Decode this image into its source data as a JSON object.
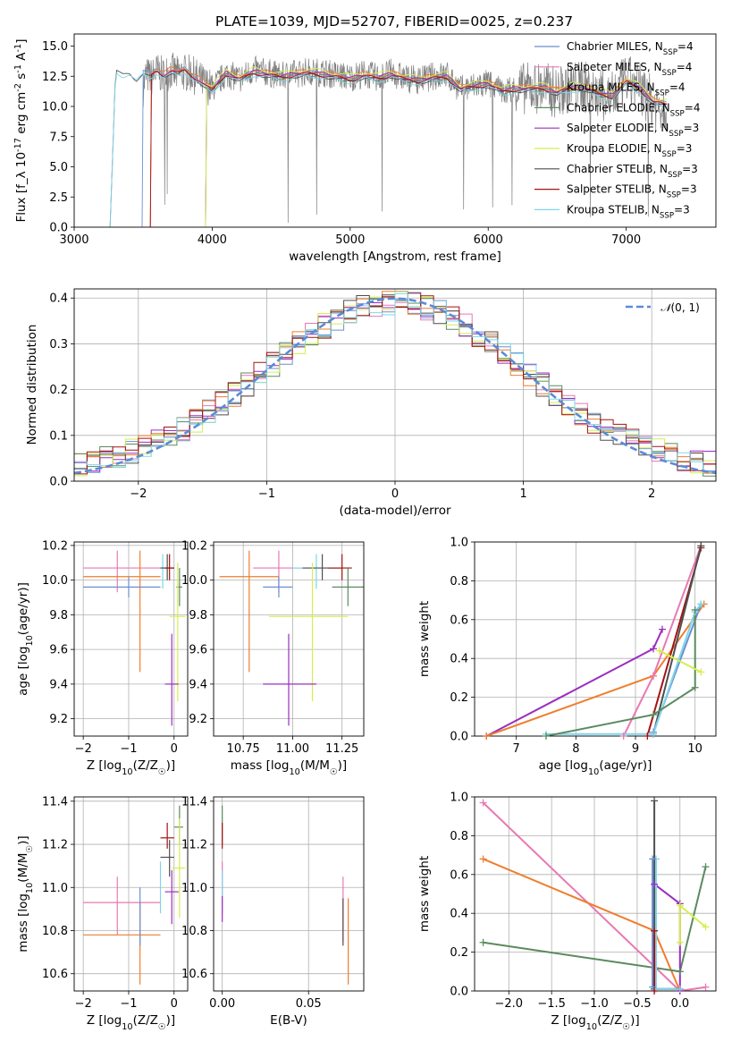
{
  "figure": {
    "title": "PLATE=1039, MJD=52707, FIBERID=0025, z=0.237"
  },
  "colors": {
    "data_grey": "#808080",
    "chabrier_miles": "#6a8fd0",
    "salpeter_miles": "#e879b4",
    "kroupa_miles": "#ef7e2e",
    "chabrier_elodie": "#5b8a60",
    "salpeter_elodie": "#9b2fbf",
    "kroupa_elodie": "#d6ee4d",
    "chabrier_stelib": "#4f4f4f",
    "salpeter_stelib": "#a31313",
    "kroupa_stelib": "#80d5ea",
    "normal_curve": "#5b8bd6"
  },
  "chart_data": [
    {
      "id": "spectrum",
      "type": "line",
      "title": "PLATE=1039, MJD=52707, FIBERID=0025, z=0.237",
      "xlabel": "wavelength [Angstrom, rest frame]",
      "ylabel": "Flux [f_λ 10^-17 erg cm^-2 s^-1 A^-1]",
      "xlim": [
        3000,
        7650
      ],
      "ylim": [
        0,
        16
      ],
      "xticks": [
        "3000",
        "4000",
        "5000",
        "6000",
        "7000"
      ],
      "yticks": [
        "0.0",
        "2.5",
        "5.0",
        "7.5",
        "10.0",
        "12.5",
        "15.0"
      ],
      "grid": false,
      "legend_position": "upper-right",
      "observed": {
        "x": [
          3500,
          3520,
          3560,
          3600,
          3650,
          3700,
          3750,
          3800,
          3850,
          3900,
          3950,
          4000,
          4100,
          4200,
          4300,
          4400,
          4500,
          4600,
          4700,
          4800,
          4900,
          5000,
          5100,
          5200,
          5300,
          5400,
          5500,
          5600,
          5700,
          5800,
          5900,
          6000,
          6100,
          6200,
          6300,
          6400,
          6500,
          6600,
          6700,
          6800,
          6900,
          7000,
          7100,
          7200,
          7300
        ],
        "y": [
          11.5,
          12.6,
          12.4,
          12.9,
          12.5,
          13.0,
          12.6,
          12.8,
          12.7,
          12.3,
          11.8,
          11.5,
          12.7,
          12.3,
          13.0,
          12.8,
          12.5,
          12.7,
          12.9,
          12.8,
          12.6,
          12.4,
          12.7,
          12.4,
          12.8,
          12.3,
          12.2,
          12.5,
          12.6,
          11.4,
          11.7,
          11.9,
          11.2,
          11.5,
          11.5,
          11.6,
          11.1,
          11.7,
          11.6,
          11.0,
          10.7,
          12.2,
          11.5,
          10.2,
          10.0
        ]
      },
      "model": {
        "x": [
          3200,
          3260,
          3300,
          3350,
          3400,
          3450,
          3500,
          3550,
          3600,
          3650,
          3700,
          3750,
          3800,
          3850,
          3900,
          3950,
          4000,
          4100,
          4200,
          4300,
          4400,
          4500,
          4600,
          4700,
          4800,
          4900,
          5000,
          5100,
          5200,
          5300,
          5400,
          5500,
          5600,
          5700,
          5800,
          5900,
          6000,
          6100,
          6200,
          6300,
          6400,
          6500,
          6600,
          6700,
          6800,
          6900,
          7000,
          7100,
          7200,
          7300
        ],
        "y": [
          0.0,
          0.0,
          13.0,
          12.7,
          12.9,
          12.3,
          12.8,
          12.5,
          13.0,
          12.6,
          12.9,
          12.7,
          13.0,
          12.6,
          12.2,
          11.7,
          11.3,
          12.7,
          12.2,
          12.8,
          12.6,
          12.4,
          12.6,
          12.7,
          12.6,
          12.4,
          12.2,
          12.5,
          12.3,
          12.6,
          12.2,
          12.1,
          12.3,
          12.4,
          11.4,
          11.6,
          11.8,
          11.2,
          11.4,
          11.4,
          11.5,
          11.1,
          11.5,
          11.5,
          11.0,
          10.8,
          12.0,
          11.4,
          10.3,
          10.1
        ]
      },
      "series": [
        {
          "name": "Chabrier MILES, N_SSP=4",
          "color_key": "chabrier_miles",
          "start": 3500,
          "offset": 0.15
        },
        {
          "name": "Salpeter MILES, N_SSP=4",
          "color_key": "salpeter_miles",
          "start": 3560,
          "offset": 0.05
        },
        {
          "name": "Kroupa MILES, N_SSP=4",
          "color_key": "kroupa_miles",
          "start": 3560,
          "offset": 0.25
        },
        {
          "name": "Chabrier ELODIE, N_SSP=4",
          "color_key": "chabrier_elodie",
          "start": 3960,
          "offset": -0.05
        },
        {
          "name": "Salpeter ELODIE, N_SSP=3",
          "color_key": "salpeter_elodie",
          "start": 3960,
          "offset": 0.1
        },
        {
          "name": "Kroupa ELODIE, N_SSP=3",
          "color_key": "kroupa_elodie",
          "start": 3960,
          "offset": 0.35
        },
        {
          "name": "Chabrier STELIB, N_SSP=3",
          "color_key": "chabrier_stelib",
          "start": 3260,
          "offset": -0.1
        },
        {
          "name": "Salpeter STELIB, N_SSP=3",
          "color_key": "salpeter_stelib",
          "start": 3560,
          "offset": 0.0
        },
        {
          "name": "Kroupa STELIB, N_SSP=3",
          "color_key": "kroupa_stelib",
          "start": 3260,
          "offset": -0.2
        }
      ]
    },
    {
      "id": "residuals",
      "type": "line",
      "xlabel": "(data-model)/error",
      "ylabel": "Normed distribution",
      "xlim": [
        -2.5,
        2.5
      ],
      "ylim": [
        0,
        0.42
      ],
      "xticks": [
        "-2",
        "-1",
        "0",
        "1",
        "2"
      ],
      "yticks": [
        "0.0",
        "0.1",
        "0.2",
        "0.3",
        "0.4"
      ],
      "grid": true,
      "legend_position": "upper-right",
      "legend": "N(0,1)",
      "curve": {
        "name": "N(0,1)",
        "mean": 0,
        "sigma": 1
      },
      "bin_width": 0.1
    },
    {
      "id": "age_vs_Z",
      "type": "scatter",
      "xlabel": "Z [log10(Z/Z☉)]",
      "ylabel": "age [log10(age/yr)]",
      "xlim": [
        -2.2,
        0.3
      ],
      "ylim": [
        9.1,
        10.22
      ],
      "xticks": [
        "-2",
        "-1",
        "0"
      ],
      "yticks": [
        "9.2",
        "9.4",
        "9.6",
        "9.8",
        "10.0",
        "10.2"
      ],
      "grid": true,
      "points": [
        {
          "color_key": "salpeter_miles",
          "x": -1.25,
          "y": 10.07,
          "xlo": -2.0,
          "xhi": -0.3,
          "ylo": 9.93,
          "yhi": 10.17
        },
        {
          "color_key": "kroupa_miles",
          "x": -0.75,
          "y": 10.02,
          "xlo": -2.0,
          "xhi": -0.3,
          "ylo": 9.47,
          "yhi": 10.17
        },
        {
          "color_key": "chabrier_miles",
          "x": -1.0,
          "y": 9.96,
          "xlo": -2.0,
          "xhi": -0.3,
          "ylo": 9.9,
          "yhi": 10.02
        },
        {
          "color_key": "kroupa_stelib",
          "x": -0.25,
          "y": 10.07,
          "xlo": -0.3,
          "xhi": 0.0,
          "ylo": 9.95,
          "yhi": 10.15
        },
        {
          "color_key": "chabrier_stelib",
          "x": -0.15,
          "y": 10.07,
          "xlo": -0.3,
          "xhi": 0.0,
          "ylo": 10.0,
          "yhi": 10.15
        },
        {
          "color_key": "salpeter_stelib",
          "x": -0.1,
          "y": 10.07,
          "xlo": -0.2,
          "xhi": 0.0,
          "ylo": 10.0,
          "yhi": 10.15
        },
        {
          "color_key": "chabrier_elodie",
          "x": 0.12,
          "y": 9.96,
          "xlo": 0.05,
          "xhi": 0.18,
          "ylo": 9.85,
          "yhi": 10.07
        },
        {
          "color_key": "kroupa_elodie",
          "x": 0.08,
          "y": 9.79,
          "xlo": -0.1,
          "xhi": 0.25,
          "ylo": 9.3,
          "yhi": 10.1
        },
        {
          "color_key": "salpeter_elodie",
          "x": -0.05,
          "y": 9.4,
          "xlo": -0.2,
          "xhi": 0.1,
          "ylo": 9.16,
          "yhi": 9.69
        }
      ]
    },
    {
      "id": "age_vs_mass",
      "type": "scatter",
      "xlabel": "mass [log10(M/M☉)]",
      "xlim": [
        10.6,
        11.36
      ],
      "ylim": [
        9.1,
        10.22
      ],
      "xticks": [
        "10.75",
        "11.00",
        "11.25"
      ],
      "yticks": [
        "9.2",
        "9.4",
        "9.6",
        "9.8",
        "10.0",
        "10.2"
      ],
      "grid": true,
      "points": [
        {
          "color_key": "salpeter_miles",
          "x": 10.93,
          "y": 10.07,
          "xlo": 10.8,
          "xhi": 11.05,
          "ylo": 9.93,
          "yhi": 10.17
        },
        {
          "color_key": "kroupa_miles",
          "x": 10.78,
          "y": 10.02,
          "xlo": 10.63,
          "xhi": 10.93,
          "ylo": 9.47,
          "yhi": 10.17
        },
        {
          "color_key": "chabrier_miles",
          "x": 10.93,
          "y": 9.96,
          "xlo": 10.85,
          "xhi": 11.0,
          "ylo": 9.9,
          "yhi": 10.02
        },
        {
          "color_key": "kroupa_stelib",
          "x": 11.12,
          "y": 10.07,
          "xlo": 11.0,
          "xhi": 11.25,
          "ylo": 9.95,
          "yhi": 10.15
        },
        {
          "color_key": "chabrier_stelib",
          "x": 11.15,
          "y": 10.07,
          "xlo": 11.05,
          "xhi": 11.25,
          "ylo": 10.0,
          "yhi": 10.15
        },
        {
          "color_key": "salpeter_stelib",
          "x": 11.25,
          "y": 10.07,
          "xlo": 11.18,
          "xhi": 11.3,
          "ylo": 10.0,
          "yhi": 10.15
        },
        {
          "color_key": "chabrier_elodie",
          "x": 11.28,
          "y": 9.96,
          "xlo": 11.2,
          "xhi": 11.36,
          "ylo": 9.85,
          "yhi": 10.07
        },
        {
          "color_key": "kroupa_elodie",
          "x": 11.1,
          "y": 9.79,
          "xlo": 10.88,
          "xhi": 11.28,
          "ylo": 9.3,
          "yhi": 10.1
        },
        {
          "color_key": "salpeter_elodie",
          "x": 10.98,
          "y": 9.4,
          "xlo": 10.85,
          "xhi": 11.12,
          "ylo": 9.16,
          "yhi": 9.69
        }
      ]
    },
    {
      "id": "weight_vs_age",
      "type": "line",
      "xlabel": "age [log10(age/yr)]",
      "ylabel": "mass weight",
      "xlim": [
        6.3,
        10.35
      ],
      "ylim": [
        0,
        1
      ],
      "xticks": [
        "7",
        "8",
        "9",
        "10"
      ],
      "yticks": [
        "0.0",
        "0.2",
        "0.4",
        "0.6",
        "0.8",
        "1.0"
      ],
      "grid": true,
      "series": [
        {
          "color_key": "salpeter_elodie",
          "x": [
            6.5,
            9.3,
            9.45
          ],
          "y": [
            0.0,
            0.45,
            0.55
          ]
        },
        {
          "color_key": "kroupa_miles",
          "x": [
            6.5,
            9.3,
            10.15
          ],
          "y": [
            0.0,
            0.31,
            0.68
          ]
        },
        {
          "color_key": "salpeter_miles",
          "x": [
            8.8,
            9.3,
            10.1
          ],
          "y": [
            0.0,
            0.31,
            0.98
          ]
        },
        {
          "color_key": "salpeter_stelib",
          "x": [
            9.2,
            10.1
          ],
          "y": [
            0.0,
            0.97
          ]
        },
        {
          "color_key": "chabrier_stelib",
          "x": [
            9.3,
            10.1
          ],
          "y": [
            0.01,
            0.98
          ]
        },
        {
          "color_key": "chabrier_miles",
          "x": [
            9.3,
            10.1
          ],
          "y": [
            0.02,
            0.68
          ]
        },
        {
          "color_key": "kroupa_stelib",
          "x": [
            7.5,
            9.3,
            10.0,
            10.1
          ],
          "y": [
            0.01,
            0.01,
            0.64,
            0.68
          ]
        },
        {
          "color_key": "chabrier_elodie",
          "x": [
            7.5,
            9.3,
            10.0,
            10.0
          ],
          "y": [
            0.0,
            0.11,
            0.25,
            0.65
          ]
        },
        {
          "color_key": "kroupa_elodie",
          "x": [
            9.4,
            10.1
          ],
          "y": [
            0.44,
            0.33
          ]
        }
      ]
    },
    {
      "id": "mass_vs_Z",
      "type": "scatter",
      "xlabel": "Z [log10(Z/Z☉)]",
      "ylabel": "mass [log10(M/M☉)]",
      "xlim": [
        -2.2,
        0.3
      ],
      "ylim": [
        10.52,
        11.42
      ],
      "xticks": [
        "-2",
        "-1",
        "0"
      ],
      "yticks": [
        "10.6",
        "10.8",
        "11.0",
        "11.2",
        "11.4"
      ],
      "grid": true,
      "points": [
        {
          "color_key": "salpeter_miles",
          "x": -1.25,
          "y": 10.93,
          "xlo": -2.0,
          "xhi": -0.3,
          "ylo": 10.78,
          "yhi": 11.05
        },
        {
          "color_key": "kroupa_miles",
          "x": -0.75,
          "y": 10.78,
          "xlo": -2.0,
          "xhi": -0.3,
          "ylo": 10.55,
          "yhi": 10.93
        },
        {
          "color_key": "chabrier_miles",
          "x": -0.75,
          "y": 10.93,
          "xlo": -0.75,
          "xhi": -0.75,
          "ylo": 10.73,
          "yhi": 11.0
        },
        {
          "color_key": "salpeter_stelib",
          "x": -0.15,
          "y": 11.23,
          "xlo": -0.3,
          "xhi": 0.0,
          "ylo": 11.18,
          "yhi": 11.3
        },
        {
          "color_key": "chabrier_stelib",
          "x": -0.1,
          "y": 11.14,
          "xlo": -0.3,
          "xhi": 0.0,
          "ylo": 11.05,
          "yhi": 11.22
        },
        {
          "color_key": "kroupa_stelib",
          "x": -0.3,
          "y": 11.0,
          "xlo": -0.3,
          "xhi": -0.3,
          "ylo": 10.88,
          "yhi": 11.12
        },
        {
          "color_key": "chabrier_elodie",
          "x": 0.12,
          "y": 11.28,
          "xlo": 0.0,
          "xhi": 0.2,
          "ylo": 11.2,
          "yhi": 11.38
        },
        {
          "color_key": "kroupa_elodie",
          "x": 0.12,
          "y": 11.09,
          "xlo": -0.05,
          "xhi": 0.25,
          "ylo": 10.86,
          "yhi": 11.32
        },
        {
          "color_key": "salpeter_elodie",
          "x": -0.05,
          "y": 10.98,
          "xlo": -0.2,
          "xhi": 0.1,
          "ylo": 10.83,
          "yhi": 11.08
        }
      ]
    },
    {
      "id": "mass_vs_ebv",
      "type": "scatter",
      "xlabel": "E(B-V)",
      "xlim": [
        -0.005,
        0.082
      ],
      "ylim": [
        10.52,
        11.42
      ],
      "xticks": [
        "0.00",
        "0.05"
      ],
      "yticks": [
        "10.6",
        "10.8",
        "11.0",
        "11.2",
        "11.4"
      ],
      "grid": true,
      "points": [
        {
          "color_key": "chabrier_elodie",
          "x": 0.0,
          "y": 11.28,
          "ylo": 11.2,
          "yhi": 11.38
        },
        {
          "color_key": "salpeter_stelib",
          "x": 0.0,
          "y": 11.23,
          "ylo": 11.18,
          "yhi": 11.3
        },
        {
          "color_key": "salpeter_miles",
          "x": 0.0,
          "y": 11.0,
          "ylo": 10.88,
          "yhi": 11.12
        },
        {
          "color_key": "kroupa_stelib",
          "x": 0.0,
          "y": 11.0,
          "ylo": 10.9,
          "yhi": 11.08
        },
        {
          "color_key": "salpeter_elodie",
          "x": 0.0,
          "y": 10.9,
          "ylo": 10.84,
          "yhi": 10.96
        },
        {
          "color_key": "salpeter_miles",
          "x": 0.07,
          "y": 10.9,
          "ylo": 10.75,
          "yhi": 11.05
        },
        {
          "color_key": "chabrier_stelib",
          "x": 0.07,
          "y": 10.85,
          "ylo": 10.73,
          "yhi": 10.95
        },
        {
          "color_key": "kroupa_miles",
          "x": 0.073,
          "y": 10.75,
          "ylo": 10.55,
          "yhi": 10.95
        }
      ]
    },
    {
      "id": "weight_vs_Z",
      "type": "line",
      "xlabel": "Z [log10(Z/Z☉)]",
      "ylabel": "mass weight",
      "xlim": [
        -2.4,
        0.42
      ],
      "ylim": [
        0,
        1
      ],
      "xticks": [
        "-2.0",
        "-1.5",
        "-1.0",
        "-0.5",
        "0.0"
      ],
      "yticks": [
        "0.0",
        "0.2",
        "0.4",
        "0.6",
        "0.8",
        "1.0"
      ],
      "grid": true,
      "series": [
        {
          "color_key": "salpeter_miles",
          "x": [
            -2.3,
            0.0,
            0.3
          ],
          "y": [
            0.97,
            0.0,
            0.02
          ]
        },
        {
          "color_key": "kroupa_miles",
          "x": [
            -2.3,
            -0.3,
            0.0
          ],
          "y": [
            0.68,
            0.31,
            0.0
          ]
        },
        {
          "color_key": "chabrier_elodie",
          "x": [
            -2.3,
            0.0,
            0.3
          ],
          "y": [
            0.25,
            0.1,
            0.64
          ]
        },
        {
          "color_key": "salpeter_elodie",
          "x": [
            -0.3,
            0.0,
            0.0
          ],
          "y": [
            0.55,
            0.45,
            0.0
          ]
        },
        {
          "color_key": "kroupa_elodie",
          "x": [
            0.0,
            0.0,
            0.3
          ],
          "y": [
            0.25,
            0.44,
            0.33
          ]
        },
        {
          "color_key": "chabrier_stelib",
          "x": [
            -0.3,
            -0.3,
            0.0
          ],
          "y": [
            0.98,
            0.01,
            0.01
          ]
        },
        {
          "color_key": "kroupa_stelib",
          "x": [
            -0.28,
            -0.28,
            0.0
          ],
          "y": [
            0.68,
            0.01,
            0.01
          ]
        },
        {
          "color_key": "chabrier_miles",
          "x": [
            -0.32,
            -0.32
          ],
          "y": [
            0.68,
            0.02
          ]
        },
        {
          "color_key": "salpeter_stelib",
          "x": [
            -0.3,
            -0.3
          ],
          "y": [
            0.31,
            0.0
          ]
        }
      ]
    }
  ]
}
